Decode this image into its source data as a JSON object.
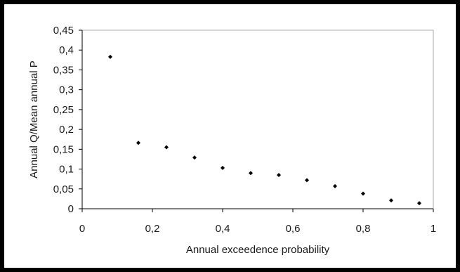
{
  "chart_data": {
    "type": "scatter",
    "title": "",
    "xlabel": "Annual exceedence probability",
    "ylabel": "Annual Q/Mean annual P",
    "xlim": [
      0,
      1
    ],
    "ylim": [
      0,
      0.45
    ],
    "x_ticks": [
      "0",
      "0,2",
      "0,4",
      "0,6",
      "0,8",
      "1"
    ],
    "y_ticks": [
      "0",
      "0,05",
      "0,1",
      "0,15",
      "0,2",
      "0,25",
      "0,3",
      "0,35",
      "0,4",
      "0,45"
    ],
    "grid": false,
    "legend": "none",
    "marker": "diamond",
    "marker_color": "#000000",
    "series": [
      {
        "points": [
          {
            "x": 0.08,
            "y": 0.383
          },
          {
            "x": 0.16,
            "y": 0.166
          },
          {
            "x": 0.24,
            "y": 0.155
          },
          {
            "x": 0.32,
            "y": 0.129
          },
          {
            "x": 0.4,
            "y": 0.103
          },
          {
            "x": 0.48,
            "y": 0.09
          },
          {
            "x": 0.56,
            "y": 0.085
          },
          {
            "x": 0.64,
            "y": 0.072
          },
          {
            "x": 0.72,
            "y": 0.057
          },
          {
            "x": 0.8,
            "y": 0.038
          },
          {
            "x": 0.88,
            "y": 0.021
          },
          {
            "x": 0.96,
            "y": 0.014
          }
        ]
      }
    ]
  }
}
